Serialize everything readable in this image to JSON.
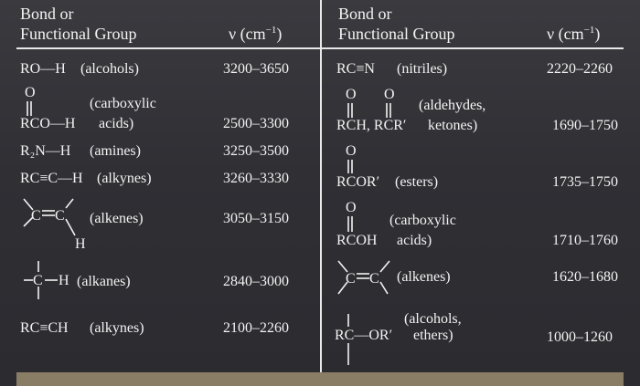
{
  "headers": {
    "left_group_l1": "Bond or",
    "left_group_l2": "Functional Group",
    "left_freq": "ν (cm",
    "right_group_l1": "Bond or",
    "right_group_l2": "Functional Group",
    "right_freq": "ν (cm",
    "unit_exp": "−1",
    "unit_close": ")"
  },
  "left": [
    {
      "group": "RO—H",
      "name": "(alcohols)",
      "range": "3200–3650"
    },
    {
      "group": "RCO—H",
      "o": "O",
      "name_l1": "(carboxylic",
      "name_l2": "acids)",
      "range": "2500–3300"
    },
    {
      "group": "R₂N—H",
      "name": "(amines)",
      "range": "3250–3500"
    },
    {
      "group": "RC≡C—H",
      "name": "(alkynes)",
      "range": "3260–3330"
    },
    {
      "c1": "C",
      "c2": "C",
      "h": "H",
      "name": "(alkenes)",
      "range": "3050–3150"
    },
    {
      "c": "C",
      "h": "H",
      "name": "(alkanes)",
      "range": "2840–3000"
    },
    {
      "group": "RC≡CH",
      "name": "(alkynes)",
      "range": "2100–2260"
    }
  ],
  "right": [
    {
      "group": "RC≡N",
      "name": "(nitriles)",
      "range": "2220–2260"
    },
    {
      "group": "RCH, RCR′",
      "o1": "O",
      "o2": "O",
      "name_l1": "(aldehydes,",
      "name_l2": "ketones)",
      "range": "1690–1750"
    },
    {
      "group": "RCOR′",
      "o": "O",
      "name": "(esters)",
      "range": "1735–1750"
    },
    {
      "group": "RCOH",
      "o": "O",
      "name_l1": "(carboxylic",
      "name_l2": "acids)",
      "range": "1710–1760"
    },
    {
      "c1": "C",
      "c2": "C",
      "name": "(alkenes)",
      "range": "1620–1680"
    },
    {
      "r": "RC",
      "or": "—OR′",
      "name_l1": "(alcohols,",
      "name_l2": "ethers)",
      "range": "1000–1260"
    }
  ]
}
